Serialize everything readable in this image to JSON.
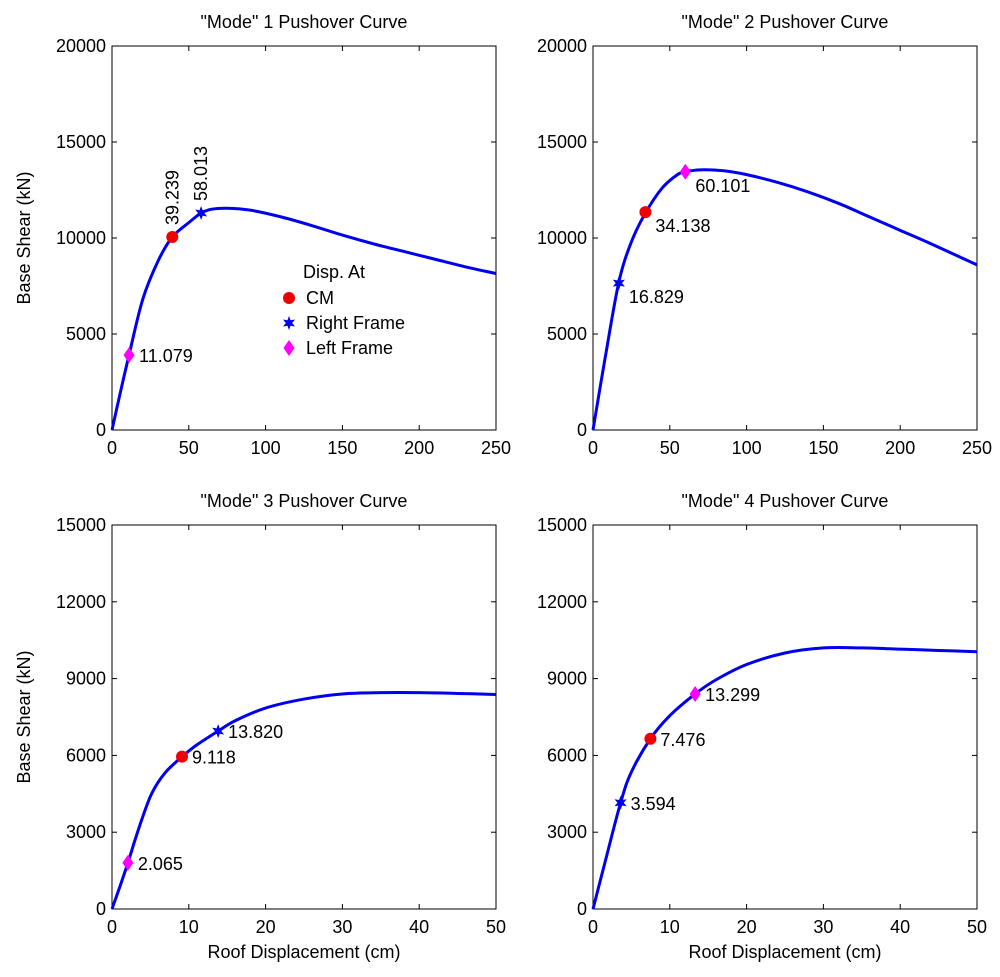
{
  "colors": {
    "curve": "#0000ee",
    "cm_marker": "#ee0000",
    "right_marker": "#0000ee",
    "left_marker": "#ff00ff"
  },
  "legend": {
    "title": "Disp. At",
    "entries": [
      {
        "label": "CM",
        "marker": "circle"
      },
      {
        "label": "Right Frame",
        "marker": "star"
      },
      {
        "label": "Left Frame",
        "marker": "diamond"
      }
    ]
  },
  "chart_data": [
    {
      "type": "line",
      "title": "\"Mode\" 1 Pushover Curve",
      "xlabel": "",
      "ylabel": "Base Shear (kN)",
      "xlim": [
        0,
        250
      ],
      "ylim": [
        0,
        20000
      ],
      "xticks": [
        0,
        50,
        100,
        150,
        200,
        250
      ],
      "yticks": [
        0,
        5000,
        10000,
        15000,
        20000
      ],
      "curve": {
        "x": [
          0,
          5,
          11.079,
          20,
          30,
          39.239,
          50,
          58.013,
          65,
          75,
          90,
          110,
          130,
          150,
          170,
          190,
          210,
          230,
          250
        ],
        "y": [
          0,
          1800,
          3900,
          6800,
          8800,
          10050,
          10800,
          11300,
          11500,
          11550,
          11450,
          11100,
          10650,
          10150,
          9700,
          9300,
          8900,
          8500,
          8150
        ]
      },
      "points": [
        {
          "series": "CM",
          "marker": "circle",
          "x": 39.239,
          "y": 10050,
          "label": "39.239",
          "label_pos": "vertical"
        },
        {
          "series": "Right Frame",
          "marker": "star",
          "x": 58.013,
          "y": 11300,
          "label": "58.013",
          "label_pos": "vertical"
        },
        {
          "series": "Left Frame",
          "marker": "diamond",
          "x": 11.079,
          "y": 3900,
          "label": "11.079",
          "label_pos": "right"
        }
      ],
      "legend": true
    },
    {
      "type": "line",
      "title": "\"Mode\" 2 Pushover Curve",
      "xlabel": "",
      "ylabel": "",
      "xlim": [
        0,
        250
      ],
      "ylim": [
        0,
        20000
      ],
      "xticks": [
        0,
        50,
        100,
        150,
        200,
        250
      ],
      "yticks": [
        0,
        5000,
        10000,
        15000,
        20000
      ],
      "curve": {
        "x": [
          0,
          8,
          16.829,
          25,
          34.138,
          45,
          55,
          60.101,
          70,
          85,
          100,
          120,
          140,
          160,
          180,
          200,
          220,
          250
        ],
        "y": [
          0,
          3800,
          7700,
          9800,
          11300,
          12600,
          13300,
          13450,
          13550,
          13500,
          13300,
          12900,
          12400,
          11800,
          11100,
          10400,
          9700,
          8600
        ]
      },
      "points": [
        {
          "series": "CM",
          "marker": "circle",
          "x": 34.138,
          "y": 11350,
          "label": "34.138",
          "label_pos": "below-right"
        },
        {
          "series": "Right Frame",
          "marker": "star",
          "x": 16.829,
          "y": 7650,
          "label": "16.829",
          "label_pos": "below-right"
        },
        {
          "series": "Left Frame",
          "marker": "diamond",
          "x": 60.101,
          "y": 13450,
          "label": "60.101",
          "label_pos": "below-right"
        }
      ],
      "legend": false
    },
    {
      "type": "line",
      "title": "\"Mode\" 3 Pushover Curve",
      "xlabel": "Roof Displacement (cm)",
      "ylabel": "Base Shear (kN)",
      "xlim": [
        0,
        50
      ],
      "ylim": [
        0,
        15000
      ],
      "xticks": [
        0,
        10,
        20,
        30,
        40,
        50
      ],
      "yticks": [
        0,
        3000,
        6000,
        9000,
        12000,
        15000
      ],
      "curve": {
        "x": [
          0,
          1,
          2.065,
          3,
          4,
          5,
          6,
          7,
          8,
          9.118,
          11,
          13.82,
          16,
          20,
          25,
          30,
          35,
          40,
          45,
          50
        ],
        "y": [
          0,
          850,
          1800,
          2700,
          3600,
          4400,
          4950,
          5350,
          5650,
          5950,
          6400,
          6950,
          7350,
          7850,
          8200,
          8400,
          8450,
          8450,
          8420,
          8380
        ]
      },
      "points": [
        {
          "series": "CM",
          "marker": "circle",
          "x": 9.118,
          "y": 5950,
          "label": "9.118",
          "label_pos": "right"
        },
        {
          "series": "Right Frame",
          "marker": "star",
          "x": 13.82,
          "y": 6950,
          "label": "13.820",
          "label_pos": "right"
        },
        {
          "series": "Left Frame",
          "marker": "diamond",
          "x": 2.065,
          "y": 1800,
          "label": "2.065",
          "label_pos": "right"
        }
      ],
      "legend": false
    },
    {
      "type": "line",
      "title": "\"Mode\" 4 Pushover Curve",
      "xlabel": "Roof Displacement (cm)",
      "ylabel": "",
      "xlim": [
        0,
        50
      ],
      "ylim": [
        0,
        15000
      ],
      "xticks": [
        0,
        10,
        20,
        30,
        40,
        50
      ],
      "yticks": [
        0,
        3000,
        6000,
        9000,
        12000,
        15000
      ],
      "curve": {
        "x": [
          0,
          1.5,
          3.594,
          5,
          7.476,
          10,
          13.299,
          16,
          20,
          25,
          30,
          35,
          40,
          45,
          50
        ],
        "y": [
          0,
          1750,
          4150,
          5350,
          6650,
          7550,
          8400,
          8950,
          9550,
          10000,
          10200,
          10200,
          10150,
          10100,
          10050
        ]
      },
      "points": [
        {
          "series": "CM",
          "marker": "circle",
          "x": 7.476,
          "y": 6650,
          "label": "7.476",
          "label_pos": "right"
        },
        {
          "series": "Right Frame",
          "marker": "star",
          "x": 3.594,
          "y": 4150,
          "label": "3.594",
          "label_pos": "right"
        },
        {
          "series": "Left Frame",
          "marker": "diamond",
          "x": 13.299,
          "y": 8400,
          "label": "13.299",
          "label_pos": "right"
        }
      ],
      "legend": false
    }
  ]
}
